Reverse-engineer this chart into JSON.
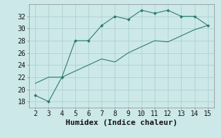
{
  "line1_x": [
    2,
    3,
    4,
    5,
    6,
    7,
    8,
    9,
    10,
    11,
    12,
    13,
    14,
    15
  ],
  "line1_y": [
    19,
    18,
    22,
    28,
    28,
    30.5,
    32,
    31.5,
    33,
    32.5,
    33,
    32,
    32,
    30.5
  ],
  "line2_x": [
    2,
    3,
    4,
    5,
    6,
    7,
    8,
    9,
    10,
    11,
    12,
    13,
    14,
    15
  ],
  "line2_y": [
    21,
    22.0,
    22.0,
    23.0,
    24.0,
    25.0,
    24.5,
    26.0,
    27.0,
    28.0,
    27.8,
    28.8,
    29.8,
    30.5
  ],
  "color": "#2a7a72",
  "background_color": "#cce8e8",
  "xlabel": "Humidex (Indice chaleur)",
  "xlim": [
    1.5,
    15.5
  ],
  "ylim": [
    17,
    34
  ],
  "xticks": [
    2,
    3,
    4,
    5,
    6,
    7,
    8,
    9,
    10,
    11,
    12,
    13,
    14,
    15
  ],
  "yticks": [
    18,
    20,
    22,
    24,
    26,
    28,
    30,
    32
  ],
  "grid_color": "#aacccc",
  "font_size": 7,
  "xlabel_font_size": 8
}
